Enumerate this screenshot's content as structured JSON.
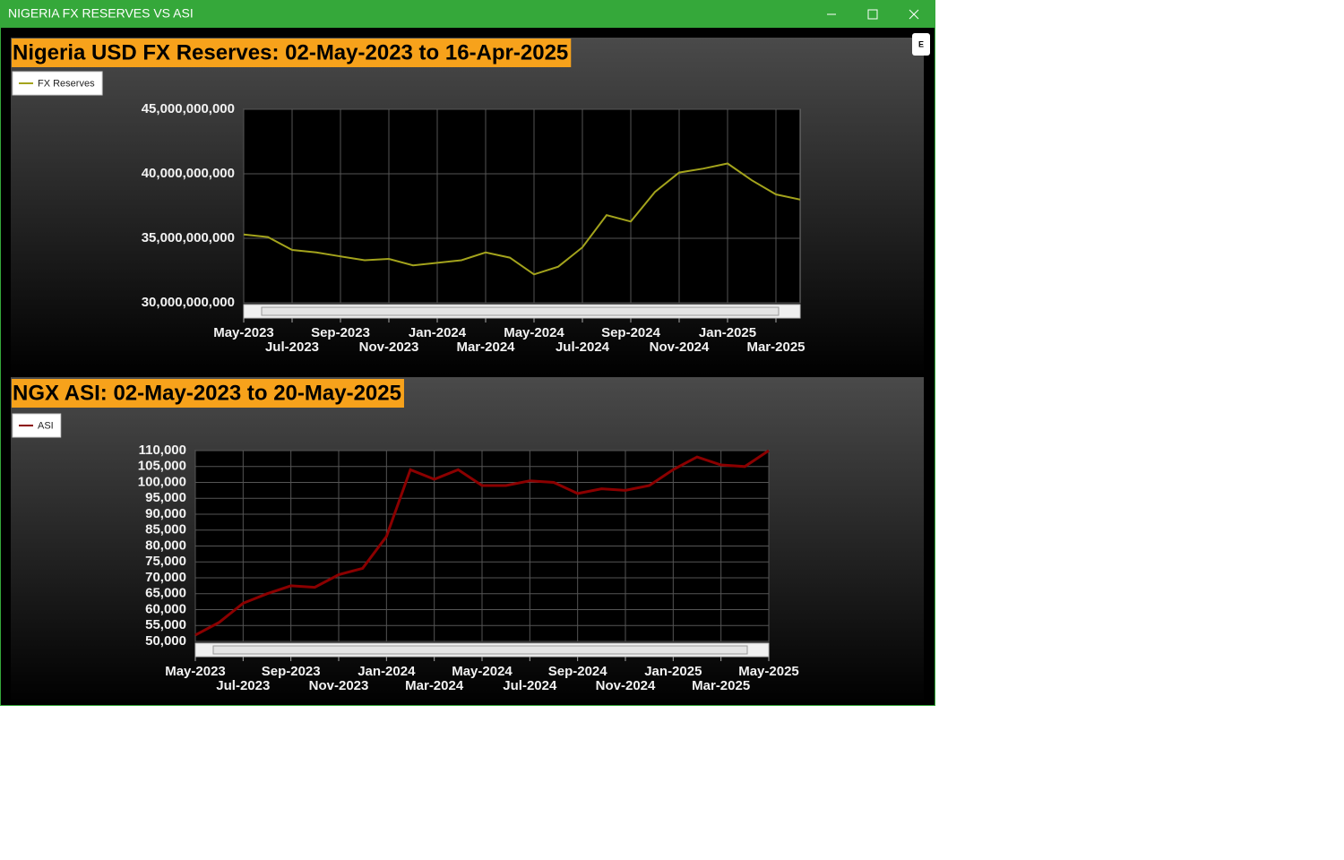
{
  "window": {
    "title": "NIGERIA FX RESERVES VS ASI",
    "button": "E"
  },
  "chart_data": [
    {
      "type": "line",
      "title": "Nigeria USD FX Reserves: 02-May-2023 to 16-Apr-2025",
      "legend": "top-left",
      "grid": true,
      "x": [
        "2023-05",
        "2023-06",
        "2023-07",
        "2023-08",
        "2023-09",
        "2023-10",
        "2023-11",
        "2023-12",
        "2024-01",
        "2024-02",
        "2024-03",
        "2024-04",
        "2024-05",
        "2024-06",
        "2024-07",
        "2024-08",
        "2024-09",
        "2024-10",
        "2024-11",
        "2024-12",
        "2025-01",
        "2025-02",
        "2025-03",
        "2025-04"
      ],
      "series": [
        {
          "name": "FX Reserves",
          "color": "#a3a31c",
          "values": [
            35300000000,
            35100000000,
            34100000000,
            33900000000,
            33600000000,
            33300000000,
            33400000000,
            32900000000,
            33100000000,
            33300000000,
            33900000000,
            33500000000,
            32200000000,
            32800000000,
            34300000000,
            36800000000,
            36300000000,
            38600000000,
            40100000000,
            40400000000,
            40800000000,
            39500000000,
            38400000000,
            38000000000
          ]
        }
      ],
      "xlim": [
        "2023-05",
        "2025-04"
      ],
      "xticks": [
        {
          "value": "2023-05",
          "label": "May-2023"
        },
        {
          "value": "2023-07",
          "label": "Jul-2023"
        },
        {
          "value": "2023-09",
          "label": "Sep-2023"
        },
        {
          "value": "2023-11",
          "label": "Nov-2023"
        },
        {
          "value": "2024-01",
          "label": "Jan-2024"
        },
        {
          "value": "2024-03",
          "label": "Mar-2024"
        },
        {
          "value": "2024-05",
          "label": "May-2024"
        },
        {
          "value": "2024-07",
          "label": "Jul-2024"
        },
        {
          "value": "2024-09",
          "label": "Sep-2024"
        },
        {
          "value": "2024-11",
          "label": "Nov-2024"
        },
        {
          "value": "2025-01",
          "label": "Jan-2025"
        },
        {
          "value": "2025-03",
          "label": "Mar-2025"
        }
      ],
      "ylim": [
        30000000000,
        45000000000
      ],
      "yticks": [
        {
          "value": 30000000000,
          "label": "30,000,000,000"
        },
        {
          "value": 35000000000,
          "label": "35,000,000,000"
        },
        {
          "value": 40000000000,
          "label": "40,000,000,000"
        },
        {
          "value": 45000000000,
          "label": "45,000,000,000"
        }
      ]
    },
    {
      "type": "line",
      "title": "NGX ASI: 02-May-2023 to 20-May-2025",
      "legend": "top-left",
      "grid": true,
      "x": [
        "2023-05",
        "2023-06",
        "2023-07",
        "2023-08",
        "2023-09",
        "2023-10",
        "2023-11",
        "2023-12",
        "2024-01",
        "2024-02",
        "2024-03",
        "2024-04",
        "2024-05",
        "2024-06",
        "2024-07",
        "2024-08",
        "2024-09",
        "2024-10",
        "2024-11",
        "2024-12",
        "2025-01",
        "2025-02",
        "2025-03",
        "2025-04",
        "2025-05"
      ],
      "series": [
        {
          "name": "ASI",
          "color": "#8b0000",
          "values": [
            52000,
            56000,
            62000,
            65000,
            67500,
            67000,
            71000,
            73000,
            83000,
            104000,
            101000,
            104000,
            99000,
            99000,
            100500,
            100000,
            96500,
            98000,
            97500,
            99000,
            104000,
            108000,
            105500,
            105000,
            110000
          ]
        }
      ],
      "xlim": [
        "2023-05",
        "2025-05"
      ],
      "xticks": [
        {
          "value": "2023-05",
          "label": "May-2023"
        },
        {
          "value": "2023-07",
          "label": "Jul-2023"
        },
        {
          "value": "2023-09",
          "label": "Sep-2023"
        },
        {
          "value": "2023-11",
          "label": "Nov-2023"
        },
        {
          "value": "2024-01",
          "label": "Jan-2024"
        },
        {
          "value": "2024-03",
          "label": "Mar-2024"
        },
        {
          "value": "2024-05",
          "label": "May-2024"
        },
        {
          "value": "2024-07",
          "label": "Jul-2024"
        },
        {
          "value": "2024-09",
          "label": "Sep-2024"
        },
        {
          "value": "2024-11",
          "label": "Nov-2024"
        },
        {
          "value": "2025-01",
          "label": "Jan-2025"
        },
        {
          "value": "2025-03",
          "label": "Mar-2025"
        },
        {
          "value": "2025-05",
          "label": "May-2025"
        }
      ],
      "ylim": [
        50000,
        110000
      ],
      "yticks": [
        {
          "value": 50000,
          "label": "50,000"
        },
        {
          "value": 55000,
          "label": "55,000"
        },
        {
          "value": 60000,
          "label": "60,000"
        },
        {
          "value": 65000,
          "label": "65,000"
        },
        {
          "value": 70000,
          "label": "70,000"
        },
        {
          "value": 75000,
          "label": "75,000"
        },
        {
          "value": 80000,
          "label": "80,000"
        },
        {
          "value": 85000,
          "label": "85,000"
        },
        {
          "value": 90000,
          "label": "90,000"
        },
        {
          "value": 95000,
          "label": "95,000"
        },
        {
          "value": 100000,
          "label": "100,000"
        },
        {
          "value": 105000,
          "label": "105,000"
        },
        {
          "value": 110000,
          "label": "110,000"
        }
      ]
    }
  ]
}
